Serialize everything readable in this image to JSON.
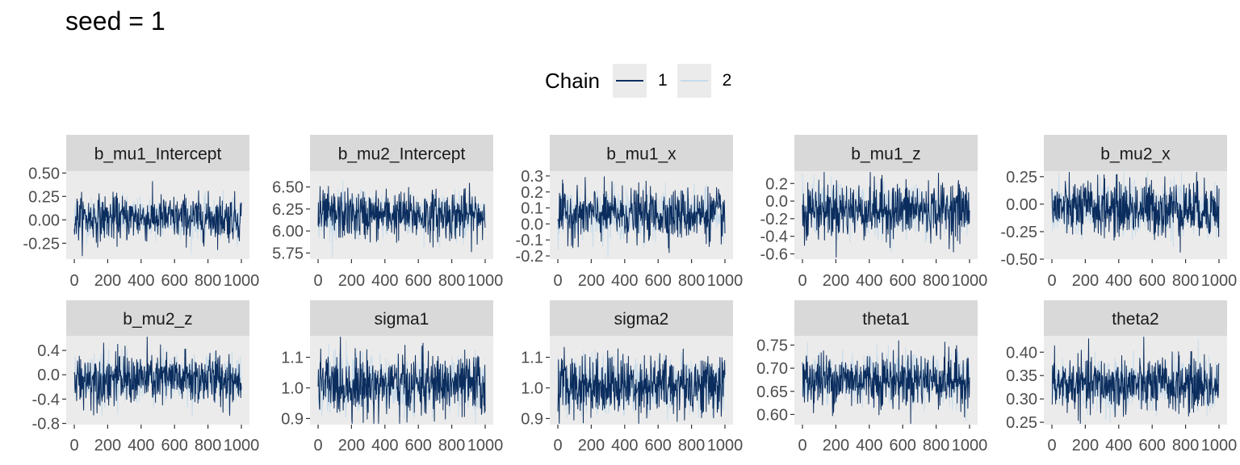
{
  "title": "seed = 1",
  "legend": {
    "title": "Chain",
    "items": [
      {
        "label": "1",
        "color": "#0b2d5e"
      },
      {
        "label": "2",
        "color": "#c6dbea"
      }
    ]
  },
  "chart_data": {
    "type": "line",
    "chart_kind": "MCMC trace plots",
    "x_ticks": [
      "0",
      "200",
      "400",
      "600",
      "800",
      "1000"
    ],
    "xlim": [
      0,
      1000
    ],
    "grid": false,
    "legend_position": "top",
    "series_names": [
      "1",
      "2"
    ],
    "panels": [
      {
        "name": "b_mu1_Intercept",
        "yticks": [
          "-0.25",
          "0.00",
          "0.25",
          "0.50"
        ],
        "ylim": [
          -0.42,
          0.52
        ],
        "center": 0.02,
        "spread": 0.12
      },
      {
        "name": "b_mu2_Intercept",
        "yticks": [
          "5.75",
          "6.00",
          "6.25",
          "6.50"
        ],
        "ylim": [
          5.68,
          6.68
        ],
        "center": 6.18,
        "spread": 0.14
      },
      {
        "name": "b_mu1_x",
        "yticks": [
          "-0.2",
          "-0.1",
          "0.0",
          "0.1",
          "0.2",
          "0.3"
        ],
        "ylim": [
          -0.22,
          0.33
        ],
        "center": 0.06,
        "spread": 0.08
      },
      {
        "name": "b_mu1_z",
        "yticks": [
          "-0.6",
          "-0.4",
          "-0.2",
          "0.0",
          "0.2"
        ],
        "ylim": [
          -0.66,
          0.34
        ],
        "center": -0.1,
        "spread": 0.16
      },
      {
        "name": "b_mu2_x",
        "yticks": [
          "-0.50",
          "-0.25",
          "0.00",
          "0.25"
        ],
        "ylim": [
          -0.5,
          0.3
        ],
        "center": -0.04,
        "spread": 0.13
      },
      {
        "name": "b_mu2_z",
        "yticks": [
          "-0.8",
          "-0.4",
          "0.0",
          "0.4"
        ],
        "ylim": [
          -0.82,
          0.64
        ],
        "center": -0.07,
        "spread": 0.22
      },
      {
        "name": "sigma1",
        "yticks": [
          "0.9",
          "1.0",
          "1.1"
        ],
        "ylim": [
          0.88,
          1.17
        ],
        "center": 1.01,
        "spread": 0.05
      },
      {
        "name": "sigma2",
        "yticks": [
          "0.9",
          "1.0",
          "1.1"
        ],
        "ylim": [
          0.88,
          1.17
        ],
        "center": 1.01,
        "spread": 0.05
      },
      {
        "name": "theta1",
        "yticks": [
          "0.60",
          "0.65",
          "0.70",
          "0.75"
        ],
        "ylim": [
          0.578,
          0.77
        ],
        "center": 0.675,
        "spread": 0.03
      },
      {
        "name": "theta2",
        "yticks": [
          "0.25",
          "0.30",
          "0.35",
          "0.40"
        ],
        "ylim": [
          0.245,
          0.435
        ],
        "center": 0.33,
        "spread": 0.03
      }
    ]
  }
}
